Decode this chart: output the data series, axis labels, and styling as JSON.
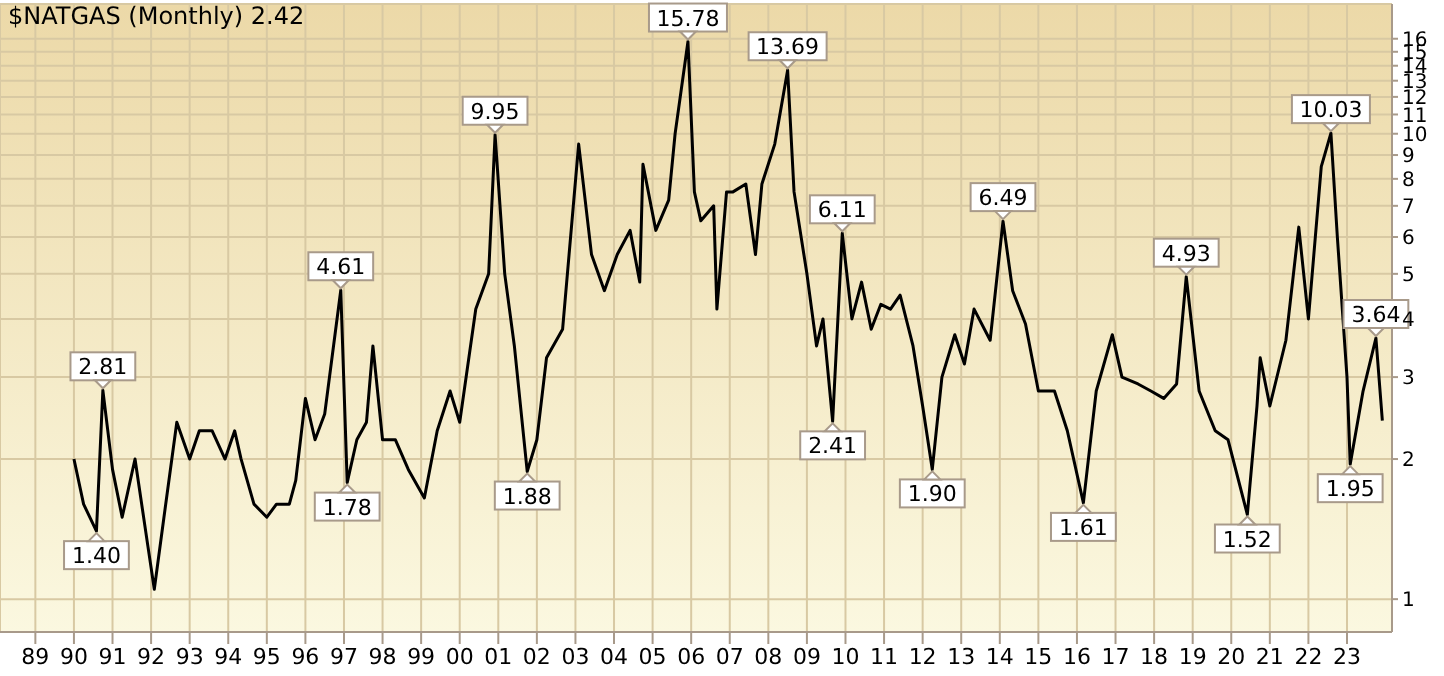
{
  "chart_data": {
    "type": "line",
    "title": "$NATGAS (Monthly) 2.42",
    "log": "y",
    "grid": true,
    "marker": "none",
    "line_style": "solid",
    "xlim": [
      "1988-02",
      "2024-03"
    ],
    "xticks": [
      {
        "value": "1989",
        "label": "89"
      },
      {
        "value": "1990",
        "label": "90"
      },
      {
        "value": "1991",
        "label": "91"
      },
      {
        "value": "1992",
        "label": "92"
      },
      {
        "value": "1993",
        "label": "93"
      },
      {
        "value": "1994",
        "label": "94"
      },
      {
        "value": "1995",
        "label": "95"
      },
      {
        "value": "1996",
        "label": "96"
      },
      {
        "value": "1997",
        "label": "97"
      },
      {
        "value": "1998",
        "label": "98"
      },
      {
        "value": "1999",
        "label": "99"
      },
      {
        "value": "2000",
        "label": "00"
      },
      {
        "value": "2001",
        "label": "01"
      },
      {
        "value": "2002",
        "label": "02"
      },
      {
        "value": "2003",
        "label": "03"
      },
      {
        "value": "2004",
        "label": "04"
      },
      {
        "value": "2005",
        "label": "05"
      },
      {
        "value": "2006",
        "label": "06"
      },
      {
        "value": "2007",
        "label": "07"
      },
      {
        "value": "2008",
        "label": "08"
      },
      {
        "value": "2009",
        "label": "09"
      },
      {
        "value": "2010",
        "label": "10"
      },
      {
        "value": "2011",
        "label": "11"
      },
      {
        "value": "2012",
        "label": "12"
      },
      {
        "value": "2013",
        "label": "13"
      },
      {
        "value": "2014",
        "label": "14"
      },
      {
        "value": "2015",
        "label": "15"
      },
      {
        "value": "2016",
        "label": "16"
      },
      {
        "value": "2017",
        "label": "17"
      },
      {
        "value": "2018",
        "label": "18"
      },
      {
        "value": "2019",
        "label": "19"
      },
      {
        "value": "2020",
        "label": "20"
      },
      {
        "value": "2021",
        "label": "21"
      },
      {
        "value": "2022",
        "label": "22"
      },
      {
        "value": "2023",
        "label": "23"
      }
    ],
    "ylim": [
      0.85,
      19
    ],
    "yticks": [
      1,
      2,
      3,
      4,
      5,
      6,
      7,
      8,
      9,
      10,
      11,
      12,
      13,
      14,
      15,
      16
    ],
    "x": [
      "1990-01",
      "1990-04",
      "1990-08",
      "1990-10",
      "1991-01",
      "1991-04",
      "1991-08",
      "1991-12",
      "1992-02",
      "1992-05",
      "1992-09",
      "1993-01",
      "1993-04",
      "1993-08",
      "1993-12",
      "1994-03",
      "1994-05",
      "1994-09",
      "1995-01",
      "1995-04",
      "1995-08",
      "1995-10",
      "1996-01",
      "1996-04",
      "1996-07",
      "1996-12",
      "1997-02",
      "1997-05",
      "1997-08",
      "1997-10",
      "1998-01",
      "1998-05",
      "1998-09",
      "1999-02",
      "1999-06",
      "1999-10",
      "2000-01",
      "2000-06",
      "2000-10",
      "2000-12",
      "2001-03",
      "2001-06",
      "2001-10",
      "2002-01",
      "2002-04",
      "2002-09",
      "2003-02",
      "2003-06",
      "2003-10",
      "2004-02",
      "2004-06",
      "2004-09",
      "2004-10",
      "2005-02",
      "2005-06",
      "2005-08",
      "2005-12",
      "2006-02",
      "2006-04",
      "2006-08",
      "2006-09",
      "2006-12",
      "2007-02",
      "2007-06",
      "2007-09",
      "2007-11",
      "2008-03",
      "2008-07",
      "2008-09",
      "2009-01",
      "2009-04",
      "2009-06",
      "2009-09",
      "2009-12",
      "2010-03",
      "2010-06",
      "2010-09",
      "2010-12",
      "2011-03",
      "2011-06",
      "2011-10",
      "2012-01",
      "2012-04",
      "2012-07",
      "2012-11",
      "2013-02",
      "2013-05",
      "2013-10",
      "2014-02",
      "2014-05",
      "2014-09",
      "2015-01",
      "2015-06",
      "2015-10",
      "2016-03",
      "2016-07",
      "2016-12",
      "2017-03",
      "2017-08",
      "2017-12",
      "2018-04",
      "2018-08",
      "2018-11",
      "2019-03",
      "2019-08",
      "2019-12",
      "2020-06",
      "2020-09",
      "2020-10",
      "2021-01",
      "2021-06",
      "2021-10",
      "2022-01",
      "2022-05",
      "2022-08",
      "2022-10",
      "2023-01",
      "2023-02",
      "2023-06",
      "2023-10",
      "2023-12"
    ],
    "series": [
      {
        "color": "#000000",
        "values": [
          2.0,
          1.6,
          1.4,
          2.81,
          1.9,
          1.5,
          2.0,
          1.3,
          1.05,
          1.5,
          2.4,
          2.0,
          2.3,
          2.3,
          2.0,
          2.3,
          2.0,
          1.6,
          1.5,
          1.6,
          1.6,
          1.8,
          2.7,
          2.2,
          2.5,
          4.61,
          1.78,
          2.2,
          2.4,
          3.5,
          2.2,
          2.2,
          1.9,
          1.65,
          2.3,
          2.8,
          2.4,
          4.2,
          5.0,
          9.95,
          5.0,
          3.5,
          1.88,
          2.2,
          3.3,
          3.8,
          9.5,
          5.5,
          4.6,
          5.5,
          6.2,
          4.8,
          8.6,
          6.2,
          7.2,
          10,
          15.78,
          7.5,
          6.5,
          7.0,
          4.2,
          7.5,
          7.5,
          7.8,
          5.5,
          7.8,
          9.5,
          13.69,
          7.5,
          5.0,
          3.5,
          4.0,
          2.41,
          6.11,
          4.0,
          4.8,
          3.8,
          4.3,
          4.2,
          4.5,
          3.5,
          2.6,
          1.9,
          3.0,
          3.7,
          3.2,
          4.2,
          3.6,
          6.49,
          4.6,
          3.9,
          2.8,
          2.8,
          2.3,
          1.61,
          2.8,
          3.7,
          3.0,
          2.9,
          2.8,
          2.7,
          2.9,
          4.93,
          2.8,
          2.3,
          2.2,
          1.52,
          2.6,
          3.3,
          2.6,
          3.6,
          6.3,
          4.0,
          8.5,
          10.03,
          6.0,
          3.0,
          1.95,
          2.8,
          3.64,
          2.42
        ]
      }
    ],
    "annotations": [
      {
        "text": "2.81",
        "x": "1990-10",
        "y": 2.81
      },
      {
        "text": "1.40",
        "x": "1990-08",
        "y": 1.4
      },
      {
        "text": "4.61",
        "x": "1996-12",
        "y": 4.61
      },
      {
        "text": "1.78",
        "x": "1997-02",
        "y": 1.78
      },
      {
        "text": "9.95",
        "x": "2000-12",
        "y": 9.95
      },
      {
        "text": "1.88",
        "x": "2001-10",
        "y": 1.88
      },
      {
        "text": "15.78",
        "x": "2005-12",
        "y": 15.78
      },
      {
        "text": "13.69",
        "x": "2008-07",
        "y": 13.69
      },
      {
        "text": "2.41",
        "x": "2009-09",
        "y": 2.41
      },
      {
        "text": "6.11",
        "x": "2009-12",
        "y": 6.11
      },
      {
        "text": "1.90",
        "x": "2012-04",
        "y": 1.9
      },
      {
        "text": "6.49",
        "x": "2014-02",
        "y": 6.49
      },
      {
        "text": "1.61",
        "x": "2016-03",
        "y": 1.61
      },
      {
        "text": "4.93",
        "x": "2018-11",
        "y": 4.93
      },
      {
        "text": "1.52",
        "x": "2020-06",
        "y": 1.52
      },
      {
        "text": "10.03",
        "x": "2022-08",
        "y": 10.03
      },
      {
        "text": "1.95",
        "x": "2023-02",
        "y": 1.95
      },
      {
        "text": "3.64",
        "x": "2023-10",
        "y": 3.64
      }
    ]
  }
}
